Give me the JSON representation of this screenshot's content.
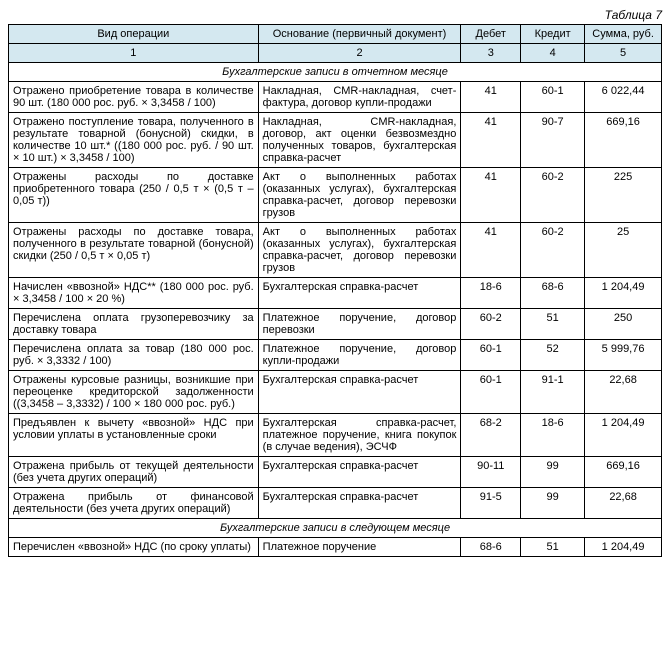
{
  "caption": "Таблица 7",
  "headers": {
    "op": "Вид операции",
    "basis": "Основание (первичный документ)",
    "debit": "Дебет",
    "credit": "Кредит",
    "sum": "Сумма, руб."
  },
  "colnums": {
    "c1": "1",
    "c2": "2",
    "c3": "3",
    "c4": "4",
    "c5": "5"
  },
  "section1": "Бухгалтерские записи в отчетном месяце",
  "section2": "Бухгалтерские записи в следующем месяце",
  "rows": [
    {
      "op": "Отражено приобретение товара в количестве 90 шт. (180 000 рос. руб. × 3,3458 / 100)",
      "basis": "Накладная, CMR-накладная, счет-фактура, договор купли-продажи",
      "debit": "41",
      "credit": "60-1",
      "sum": "6 022,44"
    },
    {
      "op": "Отражено поступление товара, полученного в результате товарной (бонусной) скидки, в количестве 10 шт.* ((180 000 рос. руб. / 90 шт. × 10 шт.) × 3,3458 / 100)",
      "basis": "Накладная, CMR-накладная, договор, акт оценки безвозмездно полученных товаров, бухгалтерская справка-расчет",
      "debit": "41",
      "credit": "90-7",
      "sum": "669,16"
    },
    {
      "op": "Отражены расходы по доставке приобретенного товара (250 / 0,5 т × (0,5 т – 0,05 т))",
      "basis": "Акт о выполненных работах (оказанных услугах), бухгалтерская справка-расчет, договор перевозки грузов",
      "debit": "41",
      "credit": "60-2",
      "sum": "225"
    },
    {
      "op": "Отражены расходы по доставке товара, полученного в результате товарной (бонусной) скидки (250 / 0,5 т × 0,05 т)",
      "basis": "Акт о выполненных работах (оказанных услугах), бухгалтерская справка-расчет, договор перевозки грузов",
      "debit": "41",
      "credit": "60-2",
      "sum": "25"
    },
    {
      "op": "Начислен «ввозной» НДС** (180 000 рос. руб. × 3,3458 / 100 × 20 %)",
      "basis": "Бухгалтерская справка-расчет",
      "debit": "18-6",
      "credit": "68-6",
      "sum": "1 204,49"
    },
    {
      "op": "Перечислена оплата грузоперевозчику за доставку товара",
      "basis": "Платежное поручение, договор перевозки",
      "debit": "60-2",
      "credit": "51",
      "sum": "250"
    },
    {
      "op": "Перечислена оплата за товар (180 000 рос. руб. × 3,3332 / 100)",
      "basis": "Платежное поручение, договор купли-продажи",
      "debit": "60-1",
      "credit": "52",
      "sum": "5 999,76"
    },
    {
      "op": "Отражены курсовые разницы, возникшие при переоценке кредиторской задолженности ((3,3458 – 3,3332) / 100 × 180 000 рос. руб.)",
      "basis": "Бухгалтерская справка-расчет",
      "debit": "60-1",
      "credit": "91-1",
      "sum": "22,68"
    },
    {
      "op": "Предъявлен к вычету «ввозной» НДС при условии уплаты в установленные сроки",
      "basis": "Бухгалтерская справка-расчет, платежное поручение, книга покупок (в случае ведения), ЭСЧФ",
      "debit": "68-2",
      "credit": "18-6",
      "sum": "1 204,49"
    },
    {
      "op": "Отражена прибыль от текущей деятельности (без учета других операций)",
      "basis": "Бухгалтерская справка-расчет",
      "debit": "90-11",
      "credit": "99",
      "sum": "669,16"
    },
    {
      "op": "Отражена прибыль от финансовой деятельности (без учета других операций)",
      "basis": "Бухгалтерская справка-расчет",
      "debit": "91-5",
      "credit": "99",
      "sum": "22,68"
    }
  ],
  "rows2": [
    {
      "op": "Перечислен «ввозной» НДС (по сроку уплаты)",
      "basis": "Платежное поручение",
      "debit": "68-6",
      "credit": "51",
      "sum": "1 204,49"
    }
  ]
}
